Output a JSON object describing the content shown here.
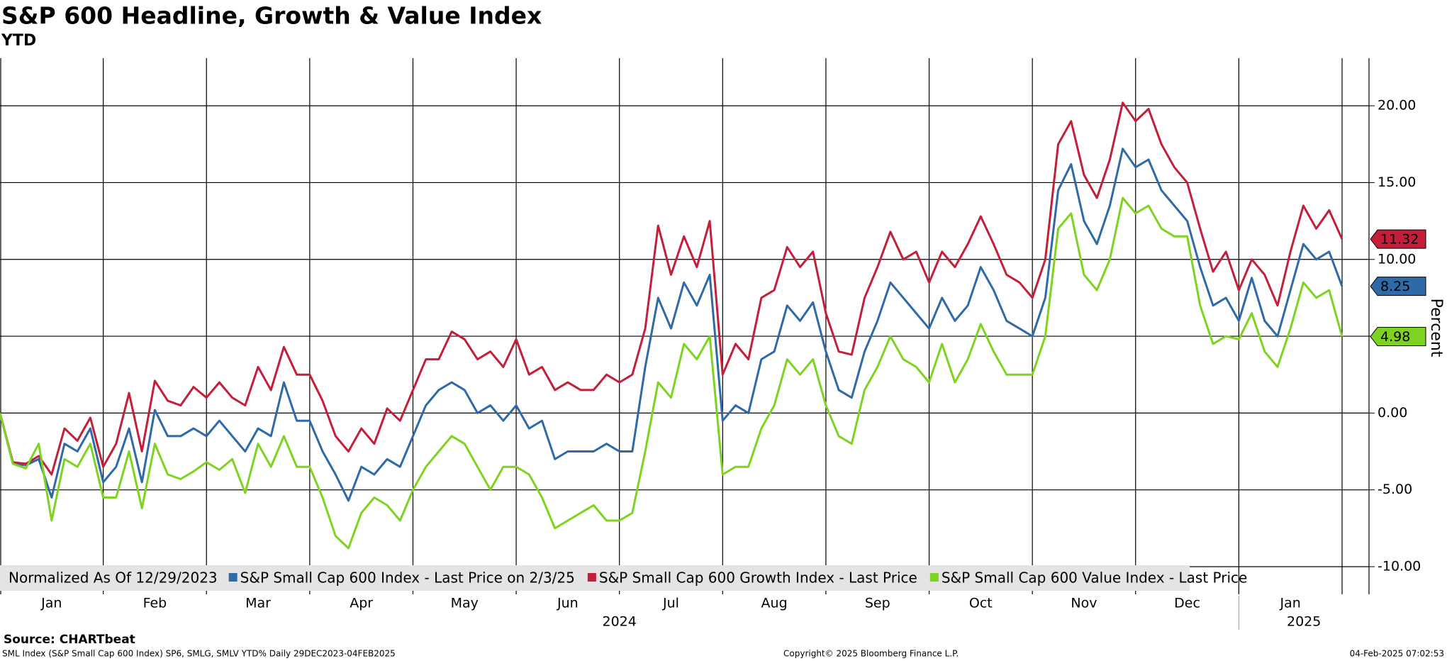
{
  "chart_data": {
    "type": "line",
    "title": "S&P 600 Headline, Growth & Value Index",
    "subtitle": "YTD",
    "y_label": "Percent",
    "legend_note": "Normalized As Of 12/29/2023",
    "source": "Source: CHARTbeat",
    "footer_left": "SML Index (S&P Small Cap 600 Index) SP6, SMLG, SMLV YTD%  Daily 29DEC2023-04FEB2025",
    "footer_center": "Copyright© 2025 Bloomberg Finance L.P.",
    "footer_right": "04-Feb-2025 07:02:53",
    "year_labels": [
      "2024",
      "2025"
    ],
    "categories": [
      null,
      null,
      null,
      null,
      "Jan",
      null,
      null,
      null,
      null,
      null,
      null,
      null,
      "Feb",
      null,
      null,
      null,
      null,
      null,
      null,
      null,
      "Mar",
      null,
      null,
      null,
      null,
      null,
      null,
      null,
      "Apr",
      null,
      null,
      null,
      null,
      null,
      null,
      null,
      "May",
      null,
      null,
      null,
      null,
      null,
      null,
      null,
      "Jun",
      null,
      null,
      null,
      null,
      null,
      null,
      null,
      "Jul",
      null,
      null,
      null,
      null,
      null,
      null,
      null,
      "Aug",
      null,
      null,
      null,
      null,
      null,
      null,
      null,
      "Sep",
      null,
      null,
      null,
      null,
      null,
      null,
      null,
      "Oct",
      null,
      null,
      null,
      null,
      null,
      null,
      null,
      "Nov",
      null,
      null,
      null,
      null,
      null,
      null,
      null,
      "Dec",
      null,
      null,
      null,
      null,
      null,
      null,
      null,
      "Jan",
      null,
      null,
      null,
      null
    ],
    "ylim": [
      -11.8,
      23.1
    ],
    "yticks": [
      {
        "value": -10,
        "label": "-10.00"
      },
      {
        "value": -5,
        "label": "-5.00"
      },
      {
        "value": 0,
        "label": "0.00"
      },
      {
        "value": 5,
        "label": "5.00"
      },
      {
        "value": 10,
        "label": "10.00"
      },
      {
        "value": 15,
        "label": "15.00"
      },
      {
        "value": 20,
        "label": "20.00"
      }
    ],
    "grid": true,
    "series": [
      {
        "name": "S&P Small Cap 600 Index - Last Price on 2/3/25",
        "color": "#2f6aa8",
        "values": [
          0,
          -3.3,
          -3.4,
          -3.0,
          -5.5,
          -2.0,
          -2.5,
          -1.0,
          -4.5,
          -3.5,
          -1.0,
          -4.5,
          0.2,
          -1.5,
          -1.5,
          -1.0,
          -1.5,
          -0.5,
          -1.5,
          -2.5,
          -1.0,
          -1.5,
          2.0,
          -0.5,
          -0.5,
          -2.5,
          -4.0,
          -5.7,
          -3.5,
          -4.0,
          -3.0,
          -3.5,
          -1.5,
          0.5,
          1.5,
          2.0,
          1.5,
          0.0,
          0.5,
          -0.5,
          0.5,
          -1.0,
          -0.5,
          -3.0,
          -2.5,
          -2.5,
          -2.5,
          -2.0,
          -2.5,
          -2.5,
          3.0,
          7.5,
          5.5,
          8.5,
          7.0,
          9.0,
          -0.5,
          0.5,
          0.0,
          3.5,
          4.0,
          7.0,
          6.0,
          7.2,
          4.0,
          1.5,
          1.0,
          4.0,
          6.0,
          8.5,
          7.5,
          6.5,
          5.5,
          7.5,
          6.0,
          7.0,
          9.5,
          8.0,
          6.0,
          5.5,
          5.0,
          7.5,
          14.5,
          16.2,
          12.5,
          11.0,
          13.5,
          17.2,
          16.0,
          16.5,
          14.5,
          13.5,
          12.5,
          9.5,
          7.0,
          7.5,
          6.0,
          8.8,
          6.0,
          5.0,
          8.0,
          11.0,
          10.0,
          10.5,
          8.25
        ]
      },
      {
        "name": "S&P Small Cap 600 Growth Index - Last Price",
        "color": "#c41e3a",
        "values": [
          0,
          -3.2,
          -3.3,
          -2.8,
          -4.0,
          -1.0,
          -1.8,
          -0.3,
          -3.5,
          -2.0,
          1.3,
          -2.5,
          2.1,
          0.8,
          0.5,
          1.7,
          1.0,
          2.0,
          1.0,
          0.5,
          3.0,
          1.5,
          4.3,
          2.5,
          2.5,
          0.8,
          -1.5,
          -2.5,
          -1.0,
          -2.0,
          0.3,
          -0.5,
          1.5,
          3.5,
          3.5,
          5.3,
          4.8,
          3.5,
          4.0,
          3.0,
          4.8,
          2.5,
          3.0,
          1.5,
          2.0,
          1.5,
          1.5,
          2.5,
          2.0,
          2.5,
          5.5,
          12.2,
          9.0,
          11.5,
          9.5,
          12.5,
          2.5,
          4.5,
          3.5,
          7.5,
          8.0,
          10.8,
          9.5,
          10.5,
          6.5,
          4.0,
          3.8,
          7.5,
          9.5,
          11.8,
          10.0,
          10.5,
          8.5,
          10.5,
          9.5,
          11.0,
          12.8,
          11.0,
          9.0,
          8.5,
          7.5,
          10.0,
          17.5,
          19.0,
          15.5,
          14.0,
          16.5,
          20.2,
          19.0,
          19.8,
          17.5,
          16.0,
          15.0,
          12.0,
          9.2,
          10.5,
          8.0,
          10.0,
          9.0,
          7.0,
          10.5,
          13.5,
          12.0,
          13.2,
          11.32
        ]
      },
      {
        "name": "S&P Small Cap 600 Value Index - Last Price",
        "color": "#7ed321",
        "values": [
          0,
          -3.3,
          -3.6,
          -2.0,
          -7.0,
          -3.0,
          -3.5,
          -2.0,
          -5.5,
          -5.5,
          -2.5,
          -6.2,
          -2.0,
          -4.0,
          -4.3,
          -3.8,
          -3.2,
          -3.7,
          -3.0,
          -5.2,
          -2.0,
          -3.5,
          -1.5,
          -3.5,
          -3.5,
          -5.5,
          -8.0,
          -8.8,
          -6.5,
          -5.5,
          -6.0,
          -7.0,
          -5.0,
          -3.5,
          -2.5,
          -1.5,
          -2.0,
          -3.5,
          -5.0,
          -3.5,
          -3.5,
          -4.0,
          -5.5,
          -7.5,
          -7.0,
          -6.5,
          -6.0,
          -7.0,
          -7.0,
          -6.5,
          -2.5,
          2.0,
          1.0,
          4.5,
          3.5,
          5.0,
          -4.0,
          -3.5,
          -3.5,
          -1.0,
          0.5,
          3.5,
          2.5,
          3.5,
          0.5,
          -1.5,
          -2.0,
          1.5,
          3.0,
          5.0,
          3.5,
          3.0,
          2.0,
          4.5,
          2.0,
          3.5,
          5.8,
          4.0,
          2.5,
          2.5,
          2.5,
          5.0,
          12.0,
          13.0,
          9.0,
          8.0,
          10.0,
          14.0,
          13.0,
          13.5,
          12.0,
          11.5,
          11.5,
          7.0,
          4.5,
          5.0,
          4.8,
          6.5,
          4.0,
          3.0,
          5.5,
          8.5,
          7.5,
          8.0,
          4.98
        ]
      }
    ]
  }
}
